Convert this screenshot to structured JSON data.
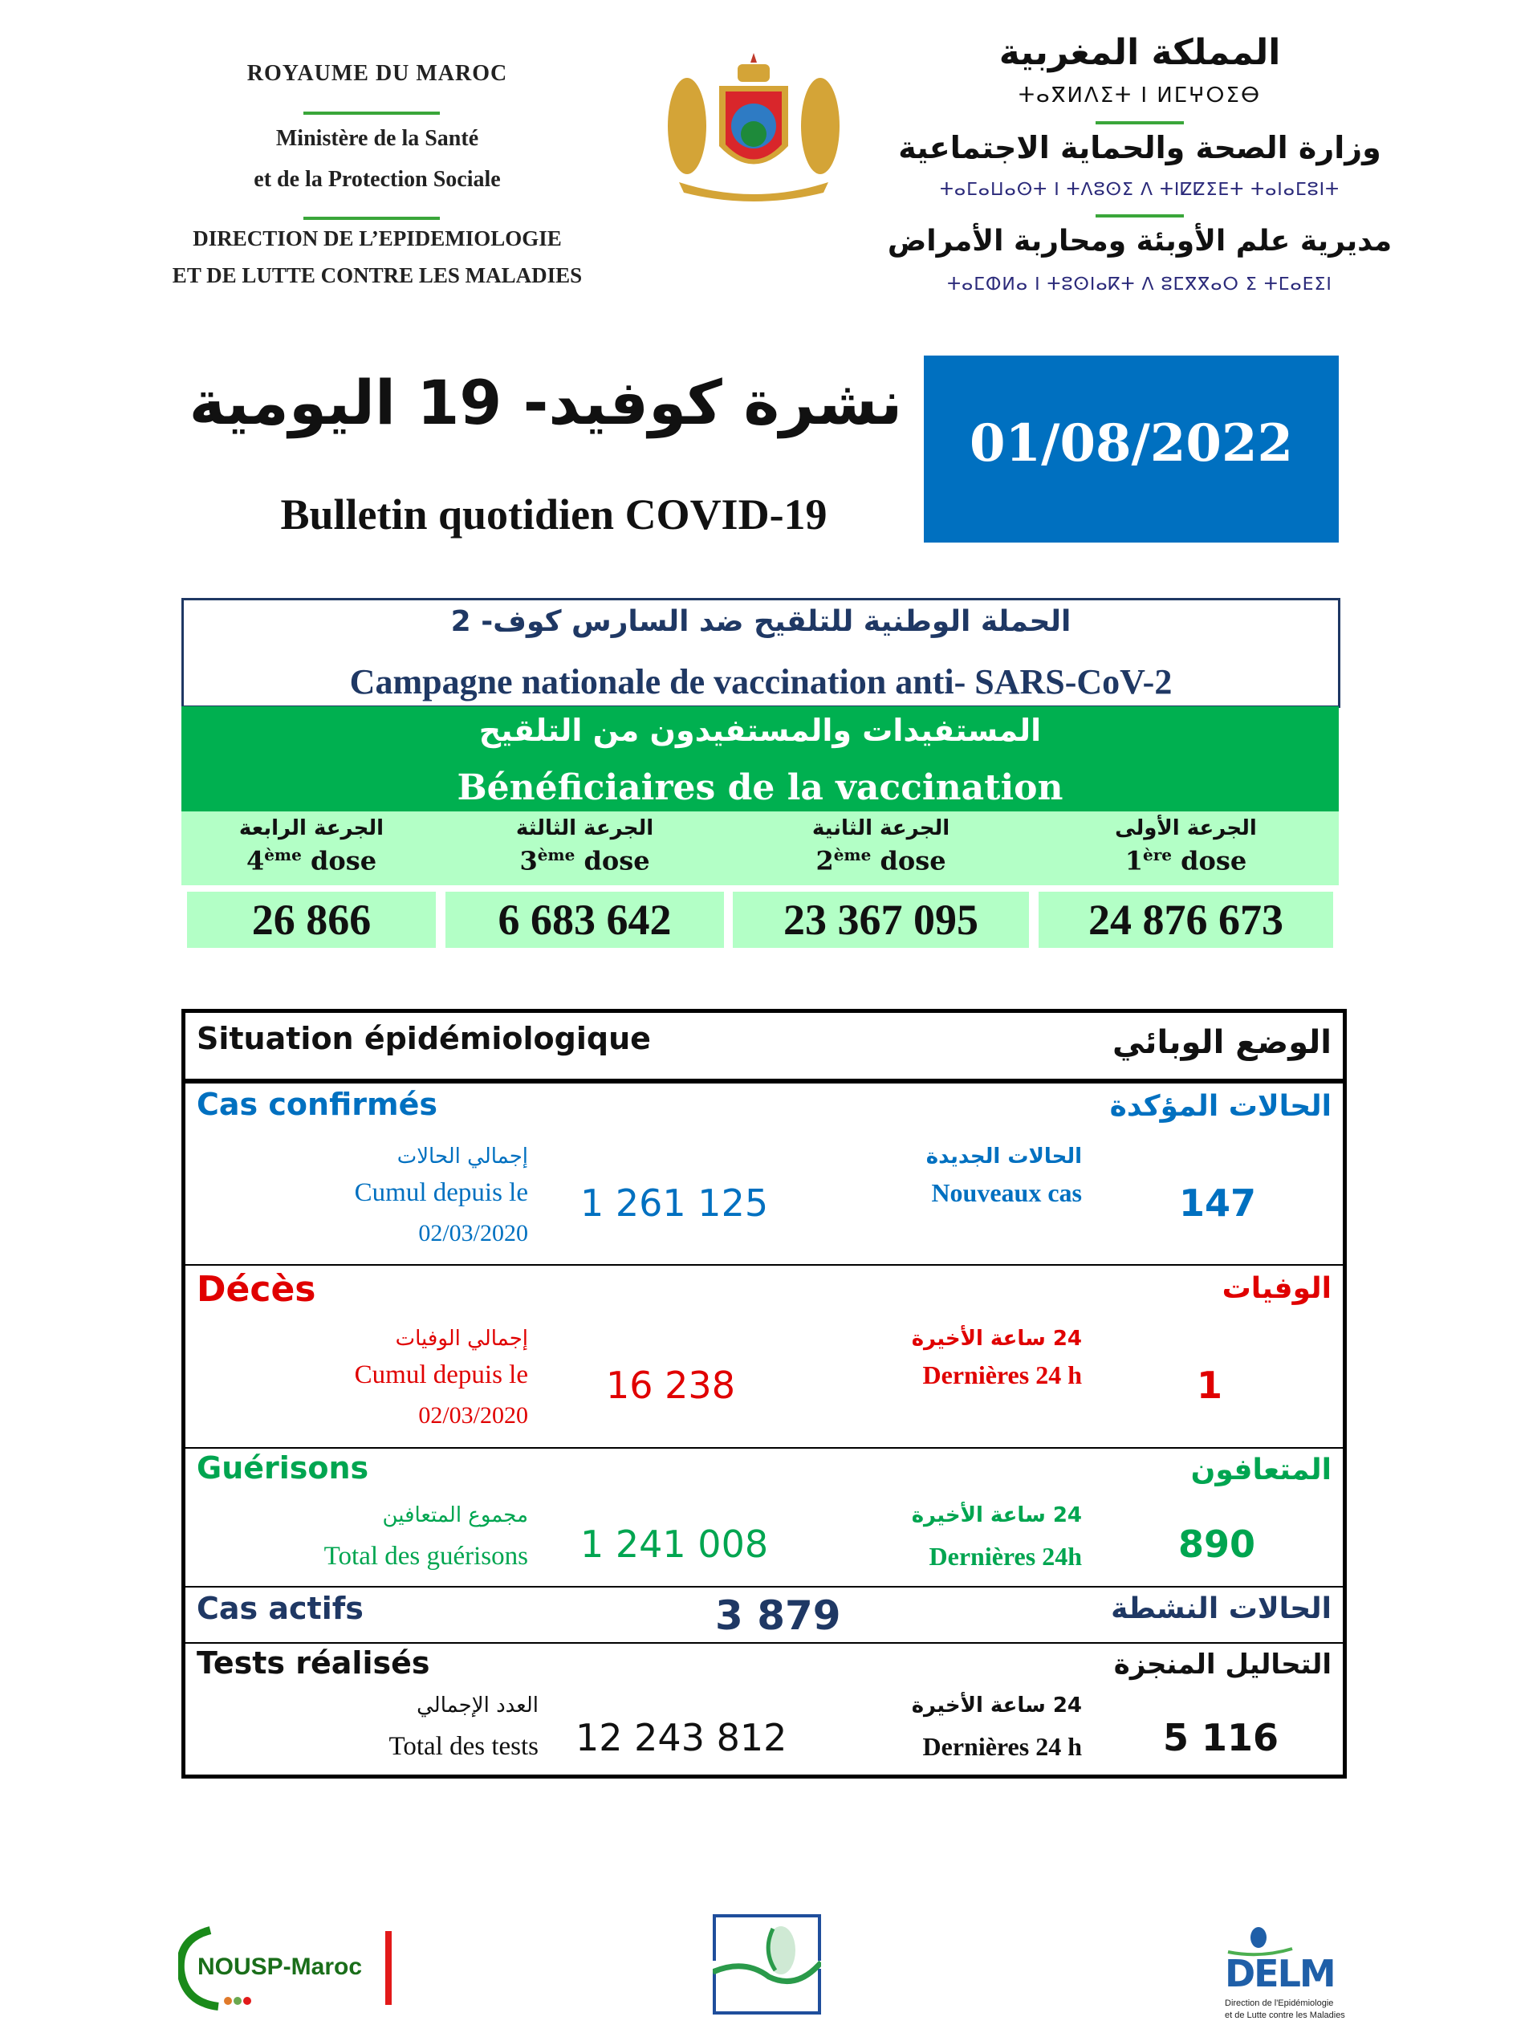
{
  "header": {
    "fr_kingdom": "ROYAUME DU MAROC",
    "fr_ministry_1": "Ministère de la Santé",
    "fr_ministry_2": "et de la Protection Sociale",
    "fr_direction_1": "DIRECTION DE L’EPIDEMIOLOGIE",
    "fr_direction_2": "ET DE LUTTE CONTRE LES MALADIES",
    "ar_kingdom": "المملكة المغربية",
    "tif_kingdom": "ⵜⴰⴳⵍⴷⵉⵜ ⵏ ⵍⵎⵖⵔⵉⴱ",
    "ar_ministry": "وزارة الصحة والحماية الاجتماعية",
    "tif_ministry": "ⵜⴰⵎⴰⵡⴰⵙⵜ ⵏ ⵜⴷⵓⵙⵉ ⴷ ⵜⵏⵇⵇⵉⴹⵜ ⵜⴰⵏⴰⵎⵓⵏⵜ",
    "ar_direction": "مديرية علم الأوبئة ومحاربة الأمراض",
    "tif_direction": "ⵜⴰⵎⵀⵍⴰ ⵏ ⵜⵓⵙⵏⴰⴽⵜ ⴷ ⵓⵎⴳⴳⴰⵔ ⵉ ⵜⵎⴰⴹⵉⵏ"
  },
  "title": {
    "ar": "نشرة كوفيد- 19 اليومية",
    "fr": "Bulletin quotidien COVID-19",
    "date": "01/08/2022"
  },
  "campaign": {
    "ar": "الحملة الوطنية للتلقيح ضد السارس كوف- 2",
    "fr": "Campagne nationale de vaccination anti- SARS-CoV-2"
  },
  "beneficiaries": {
    "ar": "المستفيدات والمستفيدون من التلقيح",
    "fr": "Bénéficiaires de la vaccination",
    "doses": [
      {
        "ar": "الجرعة الرابعة",
        "num": "4",
        "sup": "ème",
        "word": "dose",
        "value": "26 866"
      },
      {
        "ar": "الجرعة الثالثة",
        "num": "3",
        "sup": "ème",
        "word": "dose",
        "value": "6 683 642"
      },
      {
        "ar": "الجرعة الثانية",
        "num": "2",
        "sup": "ème",
        "word": "dose",
        "value": "23 367 095"
      },
      {
        "ar": "الجرعة الأولى",
        "num": "1",
        "sup": "ère",
        "word": "dose",
        "value": "24 876 673"
      }
    ]
  },
  "situation": {
    "title_fr": "Situation épidémiologique",
    "title_ar": "الوضع الوبائي",
    "confirmed": {
      "fr": "Cas confirmés",
      "ar": "الحالات المؤكدة",
      "cum_ar": "إجمالي الحالات",
      "cum_fr": "Cumul depuis le",
      "cum_date": "02/03/2020",
      "cum_value": "1 261 125",
      "new_ar": "الحالات الجديدة",
      "new_fr": "Nouveaux cas",
      "new_value": "147"
    },
    "deaths": {
      "fr": "Décès",
      "ar": "الوفيات",
      "cum_ar": "إجمالي الوفيات",
      "cum_fr": "Cumul depuis le",
      "cum_date": "02/03/2020",
      "cum_value": "16 238",
      "new_ar": "24 ساعة الأخيرة",
      "new_fr": "Dernières 24 h",
      "new_value": "1"
    },
    "recoveries": {
      "fr": "Guérisons",
      "ar": "المتعافون",
      "cum_ar": "مجموع المتعافين",
      "cum_fr": "Total des guérisons",
      "cum_value": "1 241 008",
      "new_ar": "24 ساعة الأخيرة",
      "new_fr": "Dernières 24h",
      "new_value": "890"
    },
    "active": {
      "fr": "Cas actifs",
      "ar": "الحالات النشطة",
      "value": "3 879"
    },
    "tests": {
      "fr": "Tests réalisés",
      "ar": "التحاليل المنجزة",
      "cum_ar": "العدد الإجمالي",
      "cum_fr": "Total des tests",
      "cum_value": "12 243 812",
      "new_ar": "24 ساعة الأخيرة",
      "new_fr": "Dernières 24 h",
      "new_value": "5 116"
    }
  },
  "footer": {
    "nousp": "NOUSP-Maroc",
    "delm": "DELM",
    "delm_sub_1": "Direction de l'Epidémiologie",
    "delm_sub_2": "et de Lutte contre les Maladies"
  },
  "colors": {
    "blue": "#0070c0",
    "red": "#e00000",
    "green": "#00b050",
    "navy": "#1f3864",
    "light_green": "#b3ffc6"
  }
}
